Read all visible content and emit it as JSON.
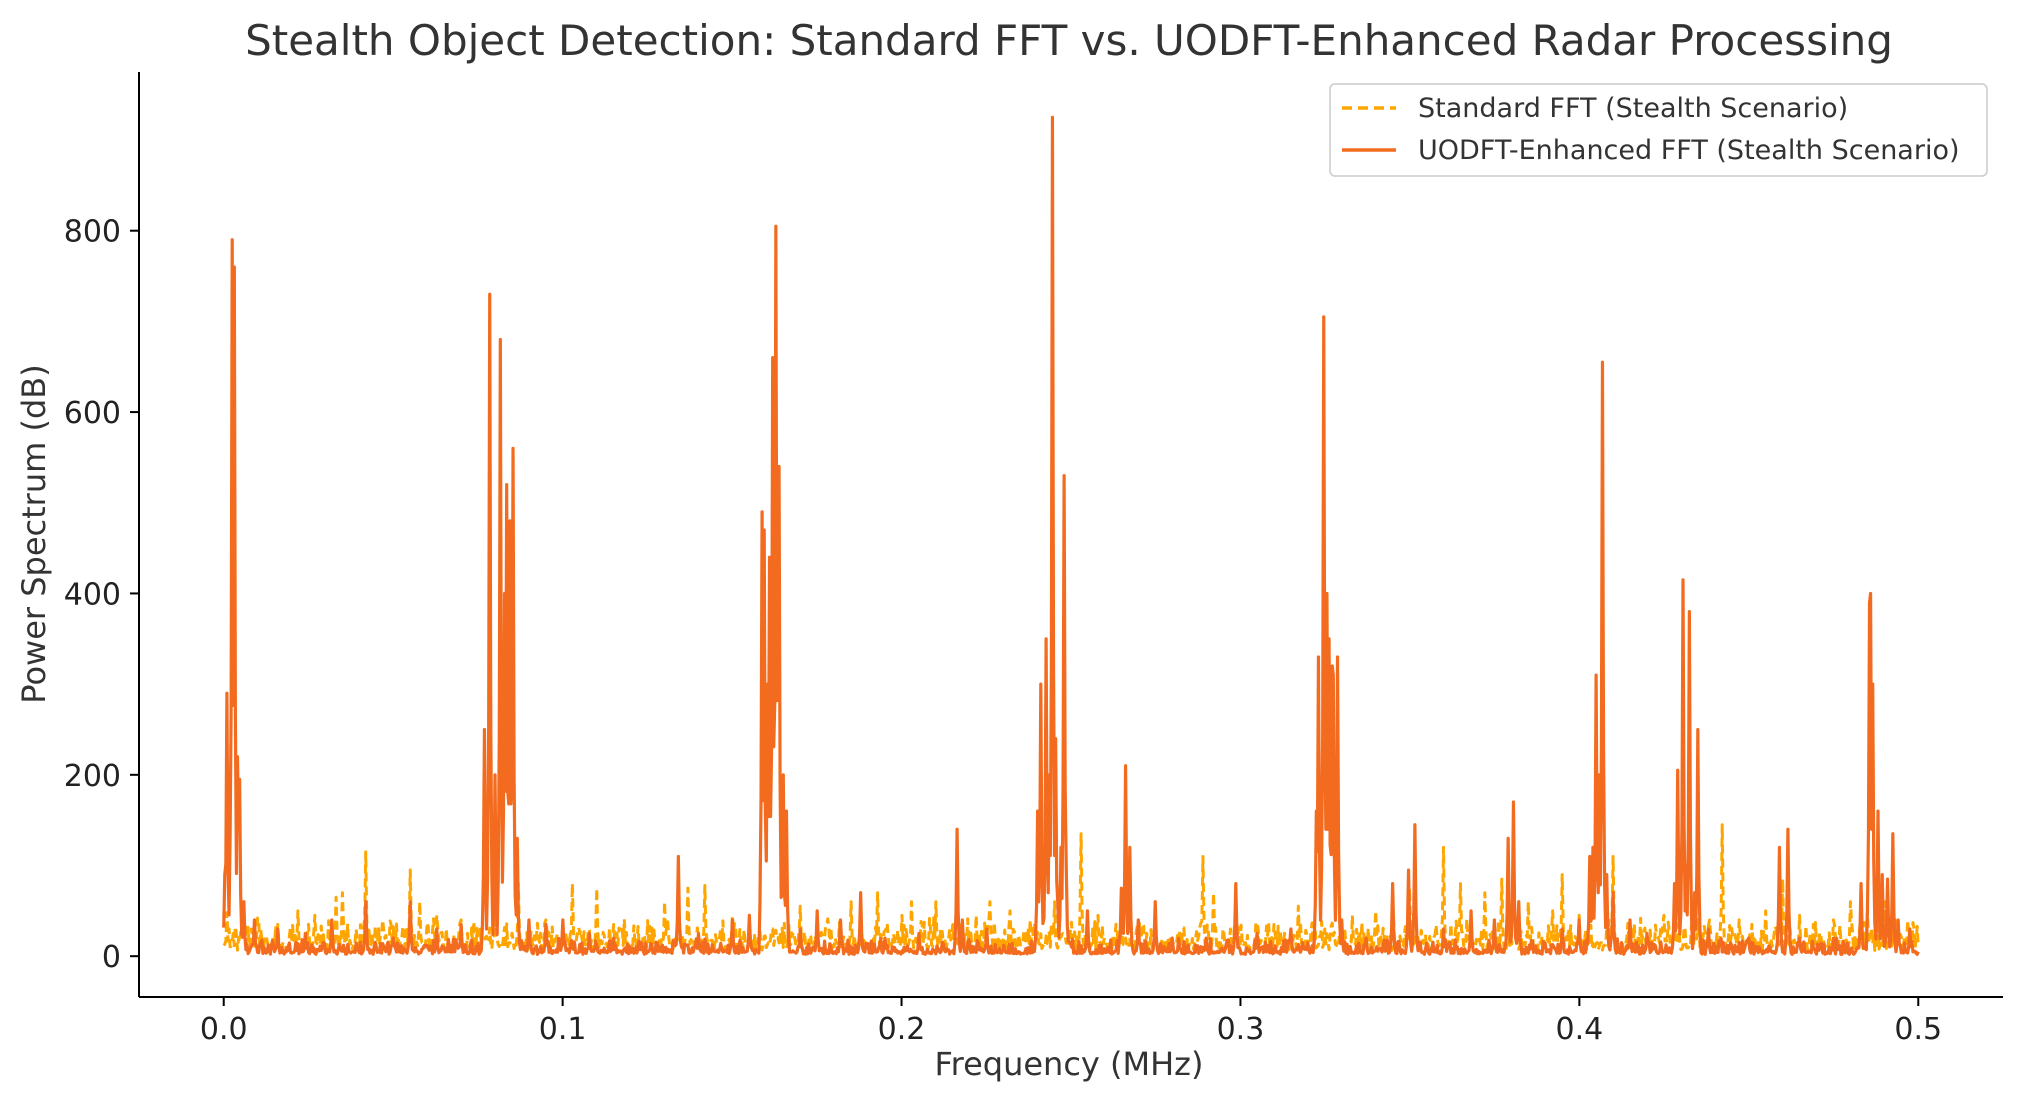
{
  "chart_data": {
    "type": "line",
    "title": "Stealth Object Detection: Standard FFT vs. UODFT-Enhanced Radar Processing",
    "xlabel": "Frequency (MHz)",
    "ylabel": "Power Spectrum (dB)",
    "xlim": [
      -0.025,
      0.525
    ],
    "ylim": [
      -45,
      975
    ],
    "xticks": [
      0.0,
      0.1,
      0.2,
      0.3,
      0.4,
      0.5
    ],
    "xtick_labels": [
      "0.0",
      "0.1",
      "0.2",
      "0.3",
      "0.4",
      "0.5"
    ],
    "yticks": [
      0,
      200,
      400,
      600,
      800
    ],
    "ytick_labels": [
      "0",
      "200",
      "400",
      "600",
      "800"
    ],
    "grid": false,
    "legend_position": "top-right",
    "series": [
      {
        "name": "Standard FFT (Stealth Scenario)",
        "style": "dashed",
        "color": "#FFA500",
        "baseline": 15,
        "noise_amplitude": 28,
        "peaks": [
          [
            0.001,
            48
          ],
          [
            0.008,
            30
          ],
          [
            0.016,
            35
          ],
          [
            0.022,
            50
          ],
          [
            0.027,
            45
          ],
          [
            0.033,
            65
          ],
          [
            0.035,
            70
          ],
          [
            0.042,
            115
          ],
          [
            0.047,
            40
          ],
          [
            0.055,
            95
          ],
          [
            0.058,
            60
          ],
          [
            0.063,
            45
          ],
          [
            0.07,
            40
          ],
          [
            0.08,
            55
          ],
          [
            0.087,
            80
          ],
          [
            0.095,
            40
          ],
          [
            0.103,
            80
          ],
          [
            0.11,
            75
          ],
          [
            0.115,
            35
          ],
          [
            0.13,
            60
          ],
          [
            0.134,
            50
          ],
          [
            0.137,
            75
          ],
          [
            0.142,
            78
          ],
          [
            0.15,
            45
          ],
          [
            0.155,
            40
          ],
          [
            0.162,
            30
          ],
          [
            0.17,
            55
          ],
          [
            0.178,
            35
          ],
          [
            0.185,
            60
          ],
          [
            0.193,
            70
          ],
          [
            0.2,
            45
          ],
          [
            0.203,
            60
          ],
          [
            0.21,
            60
          ],
          [
            0.215,
            35
          ],
          [
            0.222,
            45
          ],
          [
            0.226,
            60
          ],
          [
            0.232,
            50
          ],
          [
            0.238,
            40
          ],
          [
            0.245,
            60
          ],
          [
            0.253,
            135
          ],
          [
            0.258,
            45
          ],
          [
            0.265,
            35
          ],
          [
            0.275,
            30
          ],
          [
            0.283,
            30
          ],
          [
            0.289,
            110
          ],
          [
            0.292,
            70
          ],
          [
            0.297,
            30
          ],
          [
            0.305,
            35
          ],
          [
            0.31,
            35
          ],
          [
            0.317,
            55
          ],
          [
            0.325,
            30
          ],
          [
            0.333,
            45
          ],
          [
            0.34,
            50
          ],
          [
            0.35,
            75
          ],
          [
            0.36,
            120
          ],
          [
            0.365,
            80
          ],
          [
            0.372,
            70
          ],
          [
            0.377,
            85
          ],
          [
            0.385,
            60
          ],
          [
            0.392,
            50
          ],
          [
            0.395,
            90
          ],
          [
            0.4,
            45
          ],
          [
            0.41,
            110
          ],
          [
            0.418,
            40
          ],
          [
            0.425,
            45
          ],
          [
            0.435,
            40
          ],
          [
            0.442,
            145
          ],
          [
            0.447,
            40
          ],
          [
            0.455,
            50
          ],
          [
            0.46,
            85
          ],
          [
            0.465,
            45
          ],
          [
            0.475,
            40
          ],
          [
            0.48,
            60
          ],
          [
            0.485,
            55
          ],
          [
            0.49,
            60
          ],
          [
            0.493,
            40
          ],
          [
            0.497,
            40
          ]
        ]
      },
      {
        "name": "UODFT-Enhanced FFT (Stealth Scenario)",
        "style": "solid",
        "color": "#F26B1F",
        "baseline": 5,
        "noise_amplitude": 15,
        "peaks": [
          [
            0.0002,
            90
          ],
          [
            0.001,
            290
          ],
          [
            0.002,
            130
          ],
          [
            0.0025,
            790
          ],
          [
            0.003,
            760
          ],
          [
            0.004,
            220
          ],
          [
            0.0045,
            140
          ],
          [
            0.0048,
            195
          ],
          [
            0.006,
            60
          ],
          [
            0.009,
            40
          ],
          [
            0.016,
            30
          ],
          [
            0.024,
            25
          ],
          [
            0.032,
            40
          ],
          [
            0.042,
            60
          ],
          [
            0.05,
            20
          ],
          [
            0.055,
            60
          ],
          [
            0.063,
            30
          ],
          [
            0.07,
            35
          ],
          [
            0.077,
            250
          ],
          [
            0.0785,
            730
          ],
          [
            0.08,
            200
          ],
          [
            0.0815,
            680
          ],
          [
            0.0825,
            160
          ],
          [
            0.083,
            400
          ],
          [
            0.0835,
            520
          ],
          [
            0.0845,
            480
          ],
          [
            0.085,
            200
          ],
          [
            0.0855,
            560
          ],
          [
            0.0865,
            130
          ],
          [
            0.09,
            40
          ],
          [
            0.095,
            35
          ],
          [
            0.1,
            40
          ],
          [
            0.108,
            25
          ],
          [
            0.115,
            20
          ],
          [
            0.128,
            15
          ],
          [
            0.134,
            110
          ],
          [
            0.14,
            25
          ],
          [
            0.15,
            40
          ],
          [
            0.155,
            45
          ],
          [
            0.159,
            490
          ],
          [
            0.1595,
            470
          ],
          [
            0.1605,
            300
          ],
          [
            0.161,
            440
          ],
          [
            0.162,
            660
          ],
          [
            0.163,
            805
          ],
          [
            0.1635,
            300
          ],
          [
            0.164,
            540
          ],
          [
            0.165,
            200
          ],
          [
            0.166,
            160
          ],
          [
            0.17,
            30
          ],
          [
            0.175,
            50
          ],
          [
            0.182,
            40
          ],
          [
            0.188,
            70
          ],
          [
            0.195,
            20
          ],
          [
            0.205,
            25
          ],
          [
            0.2165,
            140
          ],
          [
            0.218,
            40
          ],
          [
            0.225,
            30
          ],
          [
            0.24,
            160
          ],
          [
            0.2405,
            60
          ],
          [
            0.241,
            300
          ],
          [
            0.2425,
            350
          ],
          [
            0.2435,
            200
          ],
          [
            0.2445,
            925
          ],
          [
            0.2455,
            240
          ],
          [
            0.246,
            60
          ],
          [
            0.247,
            120
          ],
          [
            0.248,
            530
          ],
          [
            0.2485,
            100
          ],
          [
            0.255,
            50
          ],
          [
            0.265,
            75
          ],
          [
            0.2662,
            210
          ],
          [
            0.2675,
            120
          ],
          [
            0.27,
            40
          ],
          [
            0.275,
            60
          ],
          [
            0.28,
            20
          ],
          [
            0.29,
            20
          ],
          [
            0.2985,
            80
          ],
          [
            0.305,
            25
          ],
          [
            0.315,
            30
          ],
          [
            0.3225,
            160
          ],
          [
            0.323,
            330
          ],
          [
            0.324,
            100
          ],
          [
            0.3245,
            705
          ],
          [
            0.3255,
            400
          ],
          [
            0.326,
            350
          ],
          [
            0.327,
            320
          ],
          [
            0.3275,
            310
          ],
          [
            0.3285,
            330
          ],
          [
            0.33,
            40
          ],
          [
            0.337,
            20
          ],
          [
            0.345,
            80
          ],
          [
            0.3495,
            95
          ],
          [
            0.3515,
            145
          ],
          [
            0.36,
            30
          ],
          [
            0.368,
            50
          ],
          [
            0.375,
            40
          ],
          [
            0.379,
            130
          ],
          [
            0.3805,
            170
          ],
          [
            0.382,
            60
          ],
          [
            0.395,
            30
          ],
          [
            0.4,
            40
          ],
          [
            0.403,
            110
          ],
          [
            0.404,
            120
          ],
          [
            0.405,
            310
          ],
          [
            0.406,
            200
          ],
          [
            0.4068,
            655
          ],
          [
            0.408,
            90
          ],
          [
            0.41,
            70
          ],
          [
            0.415,
            40
          ],
          [
            0.42,
            25
          ],
          [
            0.428,
            80
          ],
          [
            0.429,
            205
          ],
          [
            0.4305,
            415
          ],
          [
            0.4315,
            100
          ],
          [
            0.4325,
            380
          ],
          [
            0.434,
            70
          ],
          [
            0.435,
            250
          ],
          [
            0.438,
            30
          ],
          [
            0.45,
            20
          ],
          [
            0.459,
            120
          ],
          [
            0.4615,
            140
          ],
          [
            0.465,
            20
          ],
          [
            0.475,
            20
          ],
          [
            0.483,
            80
          ],
          [
            0.4855,
            390
          ],
          [
            0.486,
            400
          ],
          [
            0.4865,
            300
          ],
          [
            0.488,
            160
          ],
          [
            0.4895,
            90
          ],
          [
            0.491,
            85
          ],
          [
            0.4925,
            135
          ],
          [
            0.494,
            40
          ],
          [
            0.4975,
            30
          ]
        ]
      }
    ]
  }
}
